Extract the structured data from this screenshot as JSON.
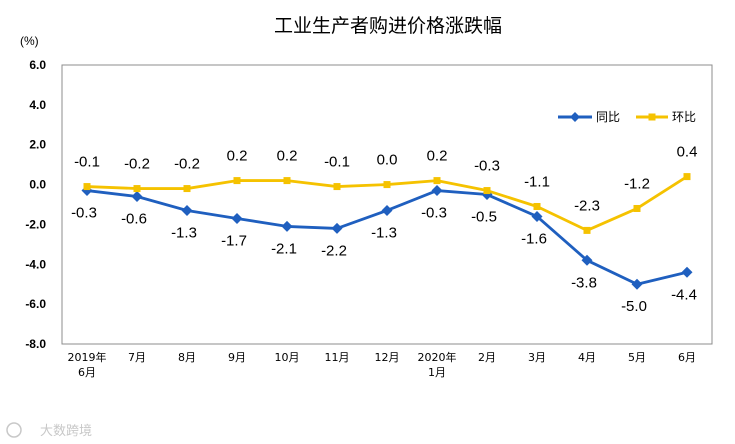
{
  "chart_data": {
    "type": "line",
    "title": "工业生产者购进价格涨跌幅",
    "unit_label": "(%)",
    "ylim": [
      -8.0,
      6.0
    ],
    "yticks": [
      "6.0",
      "4.0",
      "2.0",
      "0.0",
      "-2.0",
      "-4.0",
      "-6.0",
      "-8.0"
    ],
    "categories": [
      [
        "2019年",
        "6月"
      ],
      [
        "7月"
      ],
      [
        "8月"
      ],
      [
        "9月"
      ],
      [
        "10月"
      ],
      [
        "11月"
      ],
      [
        "12月"
      ],
      [
        "2020年",
        "1月"
      ],
      [
        "2月"
      ],
      [
        "3月"
      ],
      [
        "4月"
      ],
      [
        "5月"
      ],
      [
        "6月"
      ]
    ],
    "legend_position": "top-right",
    "grid": false,
    "series": [
      {
        "name": "同比",
        "color": "#1f5fbf",
        "marker": "diamond",
        "values": [
          -0.3,
          -0.6,
          -1.3,
          -1.7,
          -2.1,
          -2.2,
          -1.3,
          -0.3,
          -0.5,
          -1.6,
          -3.8,
          -5.0,
          -4.4
        ],
        "labels": [
          "-0.3",
          "-0.6",
          "-1.3",
          "-1.7",
          "-2.1",
          "-2.2",
          "-1.3",
          "-0.3",
          "-0.5",
          "-1.6",
          "-3.8",
          "-5.0",
          "-4.4"
        ]
      },
      {
        "name": "环比",
        "color": "#f5c200",
        "marker": "square",
        "values": [
          -0.1,
          -0.2,
          -0.2,
          0.2,
          0.2,
          -0.1,
          0.0,
          0.2,
          -0.3,
          -1.1,
          -2.3,
          -1.2,
          0.4
        ],
        "labels": [
          "-0.1",
          "-0.2",
          "-0.2",
          "0.2",
          "0.2",
          "-0.1",
          "0.0",
          "0.2",
          "-0.3",
          "-1.1",
          "-2.3",
          "-1.2",
          "0.4"
        ]
      }
    ]
  },
  "watermark": {
    "text": "大数跨境",
    "icon": "logo-icon"
  }
}
